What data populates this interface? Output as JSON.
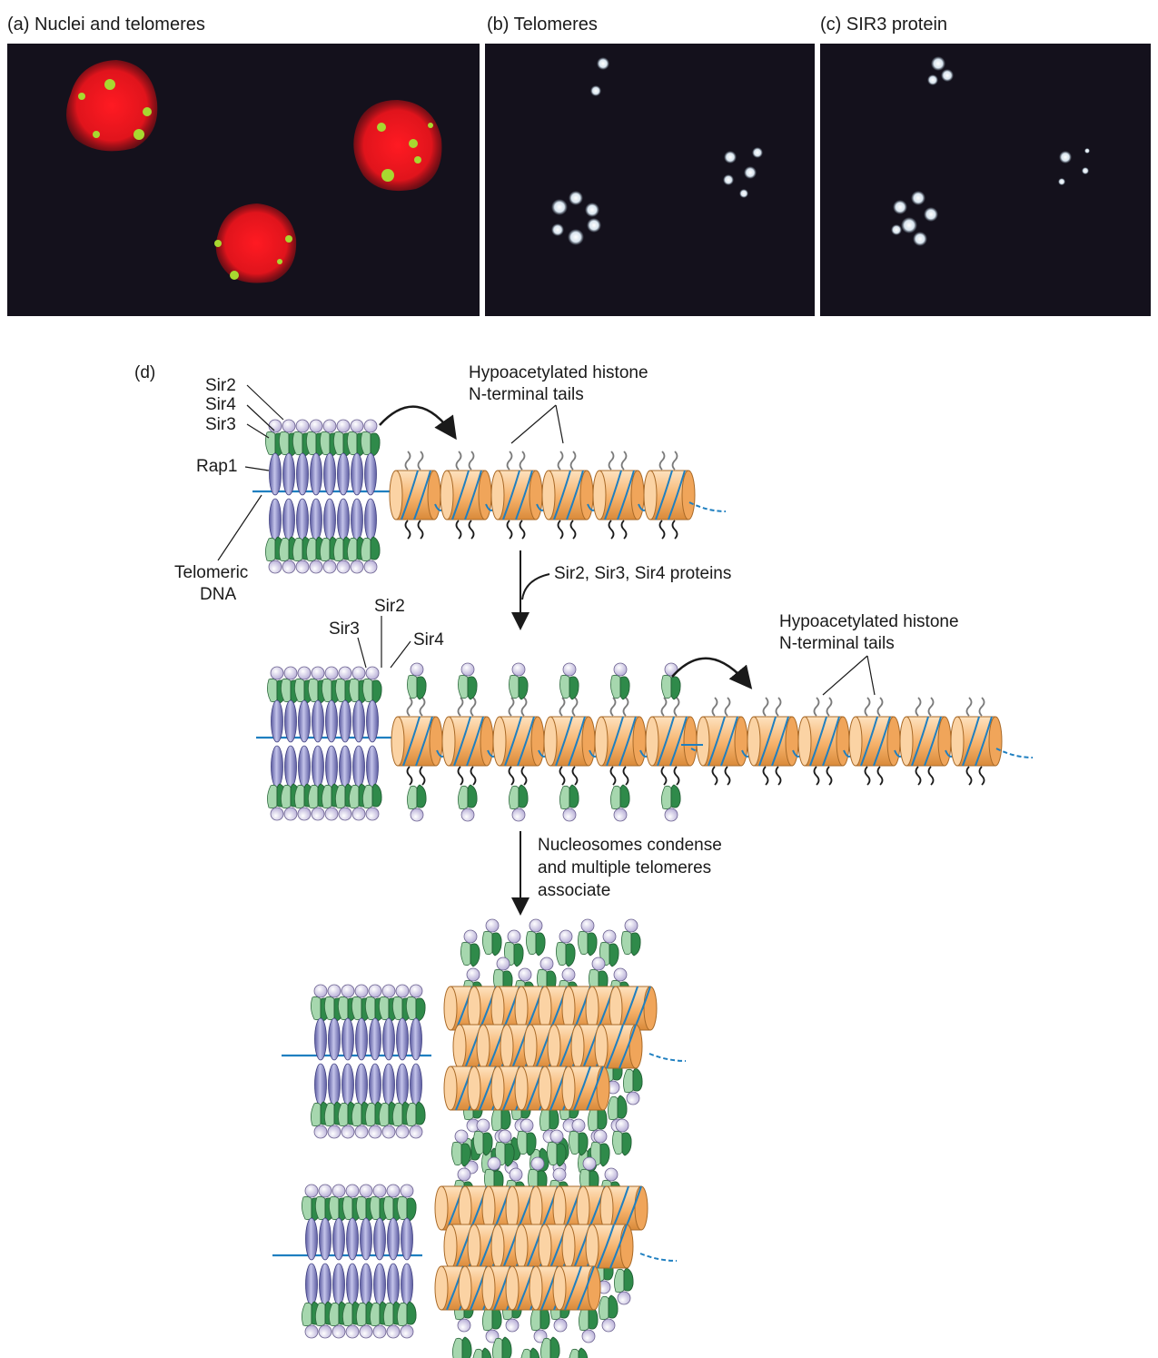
{
  "panels": {
    "a": {
      "label": "(a) Nuclei and telomeres"
    },
    "b": {
      "label": "(b) Telomeres"
    },
    "c": {
      "label": "(c) SIR3 protein"
    },
    "d": {
      "label": "(d)"
    }
  },
  "diagram": {
    "step1": {
      "sir2": "Sir2",
      "sir4": "Sir4",
      "sir3": "Sir3",
      "rap1": "Rap1",
      "telomeric_dna_line1": "Telomeric",
      "telomeric_dna_line2": "DNA",
      "tails_line1": "Hypoacetylated histone",
      "tails_line2": "N-terminal tails"
    },
    "arrow1_text": "Sir2, Sir3, Sir4 proteins",
    "step2": {
      "sir2": "Sir2",
      "sir3": "Sir3",
      "sir4": "Sir4",
      "tails_line1": "Hypoacetylated histone",
      "tails_line2": "N-terminal tails"
    },
    "arrow2_text": {
      "line1": "Nucleosomes condense",
      "line2": "and multiple telomeres",
      "line3": "associate"
    }
  },
  "colors": {
    "nucleus_red": "#e8141c",
    "telomere_green": "#9ad22a",
    "micro_background": "#14111c",
    "rap1_purple": "#8c8cc8",
    "sir_green": "#2f8a4a",
    "sir2_lilac": "#d8d2ea",
    "nucleosome_orange": "#f6b26b",
    "dna_blue": "#1f7fc0"
  }
}
